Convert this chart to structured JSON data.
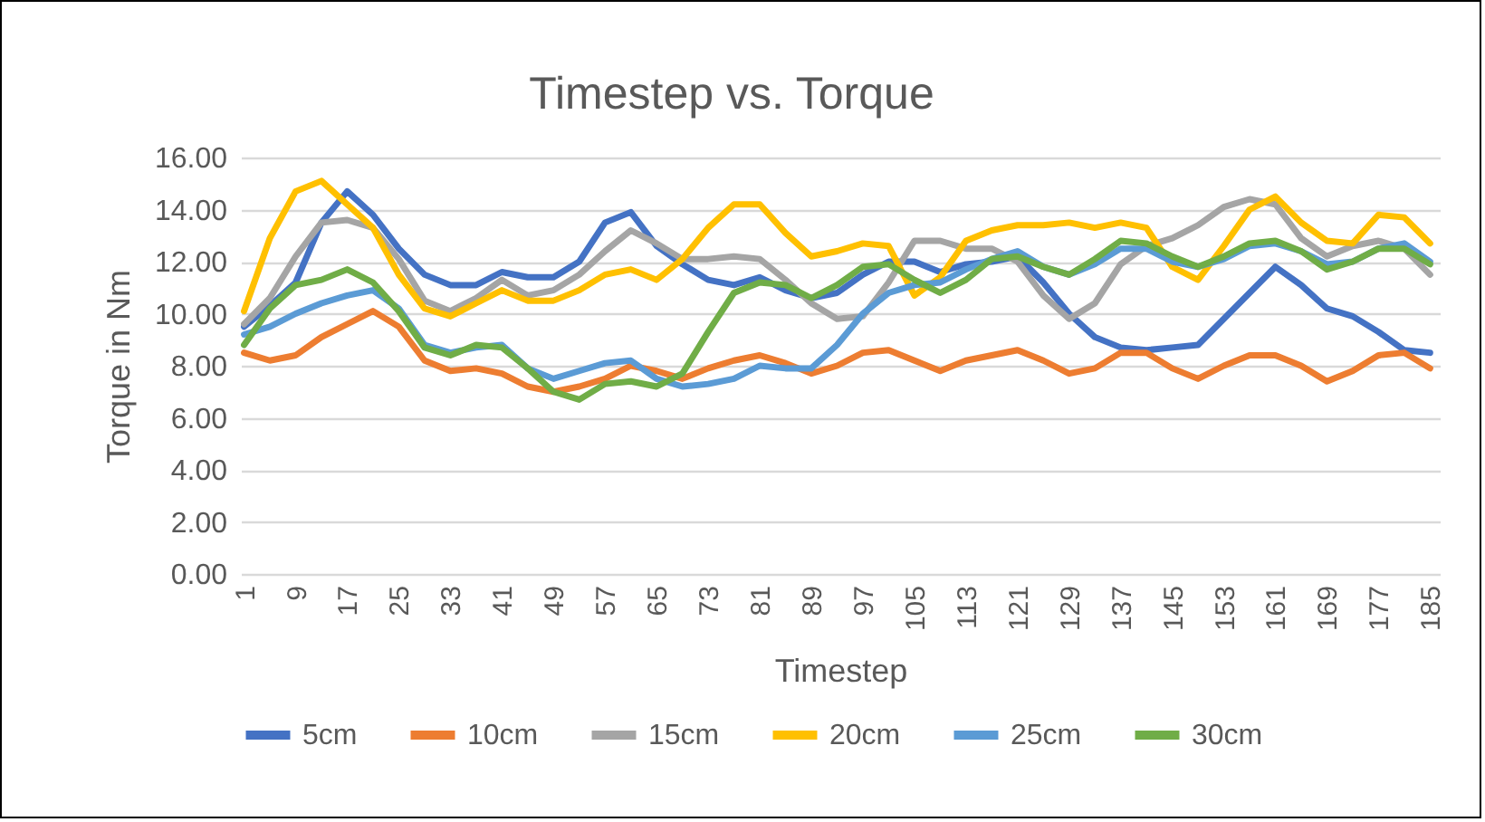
{
  "chart_data": {
    "type": "line",
    "title": "Timestep vs. Torque",
    "xlabel": "Timestep",
    "ylabel": "Torque in Nm",
    "x": [
      1,
      5,
      9,
      13,
      17,
      21,
      25,
      29,
      33,
      37,
      41,
      45,
      49,
      53,
      57,
      61,
      65,
      69,
      73,
      77,
      81,
      85,
      89,
      93,
      97,
      101,
      105,
      109,
      113,
      117,
      121,
      125,
      129,
      133,
      137,
      141,
      145,
      149,
      153,
      157,
      161,
      165,
      169,
      173,
      177,
      181,
      185
    ],
    "series": [
      {
        "name": "5cm",
        "color": "#4472c4",
        "values": [
          9.5,
          10.3,
          11.2,
          13.5,
          14.7,
          13.8,
          12.5,
          11.5,
          11.1,
          11.1,
          11.6,
          11.4,
          11.4,
          12.0,
          13.5,
          13.9,
          12.6,
          11.9,
          11.3,
          11.1,
          11.4,
          10.9,
          10.6,
          10.8,
          11.5,
          12.0,
          12.0,
          11.6,
          11.9,
          12.0,
          12.2,
          11.2,
          10.0,
          9.1,
          8.7,
          8.6,
          8.7,
          8.8,
          9.8,
          10.8,
          11.8,
          11.1,
          10.2,
          9.9,
          9.3,
          8.6,
          8.5
        ]
      },
      {
        "name": "10cm",
        "color": "#ed7d31",
        "values": [
          8.5,
          8.2,
          8.4,
          9.1,
          9.6,
          10.1,
          9.5,
          8.2,
          7.8,
          7.9,
          7.7,
          7.2,
          7.0,
          7.2,
          7.5,
          8.0,
          7.8,
          7.5,
          7.9,
          8.2,
          8.4,
          8.1,
          7.7,
          8.0,
          8.5,
          8.6,
          8.2,
          7.8,
          8.2,
          8.4,
          8.6,
          8.2,
          7.7,
          7.9,
          8.5,
          8.5,
          7.9,
          7.5,
          8.0,
          8.4,
          8.4,
          8.0,
          7.4,
          7.8,
          8.4,
          8.5,
          7.9
        ]
      },
      {
        "name": "15cm",
        "color": "#a5a5a5",
        "values": [
          9.6,
          10.6,
          12.2,
          13.5,
          13.6,
          13.3,
          12.1,
          10.5,
          10.1,
          10.6,
          11.3,
          10.7,
          10.9,
          11.5,
          12.4,
          13.2,
          12.7,
          12.1,
          12.1,
          12.2,
          12.1,
          11.3,
          10.4,
          9.8,
          9.9,
          11.2,
          12.8,
          12.8,
          12.5,
          12.5,
          12.0,
          10.7,
          9.8,
          10.4,
          11.9,
          12.6,
          12.9,
          13.4,
          14.1,
          14.4,
          14.2,
          12.9,
          12.2,
          12.6,
          12.8,
          12.5,
          11.5
        ]
      },
      {
        "name": "20cm",
        "color": "#ffc000",
        "values": [
          10.1,
          12.9,
          14.7,
          15.1,
          14.2,
          13.3,
          11.5,
          10.2,
          9.9,
          10.4,
          10.9,
          10.5,
          10.5,
          10.9,
          11.5,
          11.7,
          11.3,
          12.1,
          13.3,
          14.2,
          14.2,
          13.1,
          12.2,
          12.4,
          12.7,
          12.6,
          10.7,
          11.4,
          12.8,
          13.2,
          13.4,
          13.4,
          13.5,
          13.3,
          13.5,
          13.3,
          11.8,
          11.3,
          12.6,
          14.0,
          14.5,
          13.5,
          12.8,
          12.7,
          13.8,
          13.7,
          12.7
        ]
      },
      {
        "name": "25cm",
        "color": "#5b9bd5",
        "values": [
          9.2,
          9.5,
          10.0,
          10.4,
          10.7,
          10.9,
          10.2,
          8.8,
          8.5,
          8.7,
          8.8,
          7.9,
          7.5,
          7.8,
          8.1,
          8.2,
          7.5,
          7.2,
          7.3,
          7.5,
          8.0,
          7.9,
          7.9,
          8.8,
          10.0,
          10.8,
          11.1,
          11.2,
          11.7,
          12.1,
          12.4,
          11.8,
          11.5,
          11.9,
          12.5,
          12.5,
          12.0,
          11.8,
          12.1,
          12.6,
          12.7,
          12.4,
          11.9,
          12.0,
          12.5,
          12.7,
          12.0
        ]
      },
      {
        "name": "30cm",
        "color": "#70ad47",
        "values": [
          8.8,
          10.2,
          11.1,
          11.3,
          11.7,
          11.2,
          10.1,
          8.7,
          8.4,
          8.8,
          8.7,
          7.9,
          7.0,
          6.7,
          7.3,
          7.4,
          7.2,
          7.7,
          9.3,
          10.8,
          11.2,
          11.1,
          10.6,
          11.1,
          11.8,
          11.9,
          11.3,
          10.8,
          11.3,
          12.1,
          12.2,
          11.8,
          11.5,
          12.1,
          12.8,
          12.7,
          12.2,
          11.8,
          12.2,
          12.7,
          12.8,
          12.4,
          11.7,
          12.0,
          12.5,
          12.5,
          11.9
        ]
      }
    ],
    "xlim": [
      0.5,
      186.5
    ],
    "xticks": [
      1,
      9,
      17,
      25,
      33,
      41,
      49,
      57,
      65,
      73,
      81,
      89,
      97,
      105,
      113,
      121,
      129,
      137,
      145,
      153,
      161,
      169,
      177,
      185
    ],
    "ylim": [
      0,
      16
    ],
    "yticks": [
      {
        "value": 0,
        "label": "0.00"
      },
      {
        "value": 2,
        "label": "2.00"
      },
      {
        "value": 4,
        "label": "4.00"
      },
      {
        "value": 6,
        "label": "6.00"
      },
      {
        "value": 8,
        "label": "8.00"
      },
      {
        "value": 10,
        "label": "10.00"
      },
      {
        "value": 12,
        "label": "12.00"
      },
      {
        "value": 14,
        "label": "14.00"
      },
      {
        "value": 16,
        "label": "16.00"
      }
    ],
    "grid": "y",
    "legend": "bottom"
  }
}
